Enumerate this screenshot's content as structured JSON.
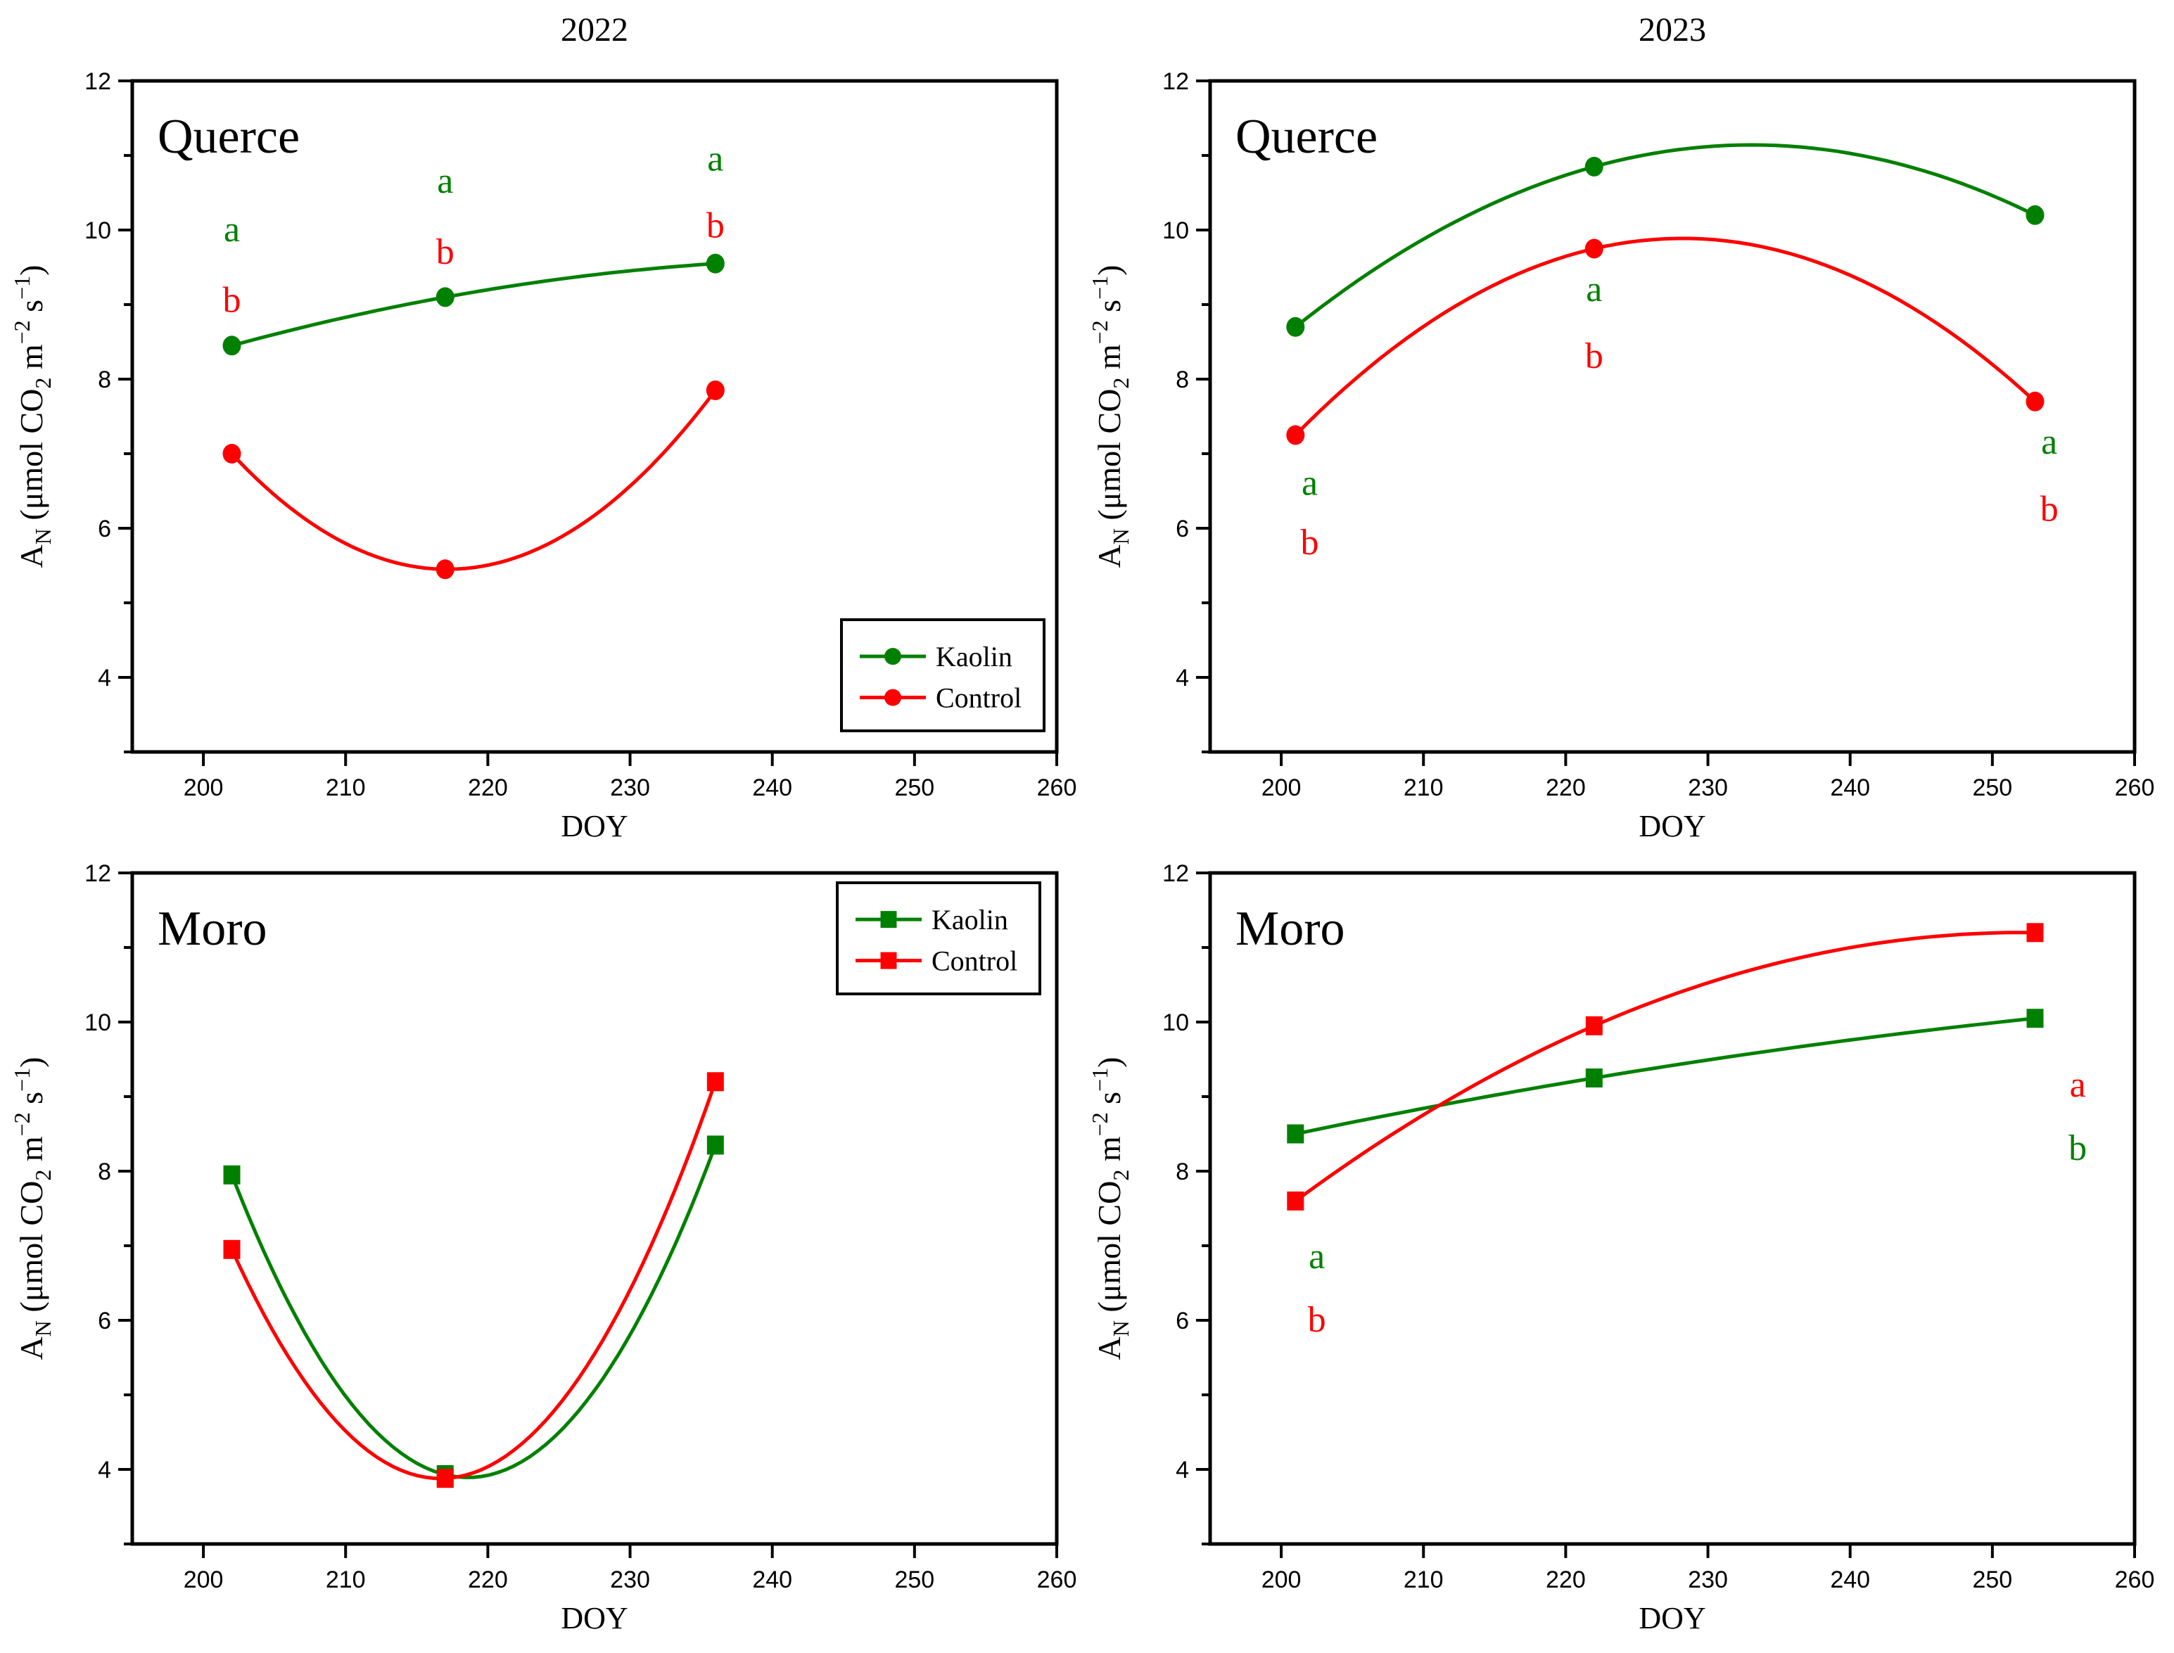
{
  "figure": {
    "column_titles": [
      "2022",
      "2023"
    ],
    "x_axis_label": "DOY",
    "y_axis_label_parts": [
      {
        "t": "A"
      },
      {
        "t": "N",
        "sub": true
      },
      {
        "t": " (μmol CO"
      },
      {
        "t": "2",
        "sub": true
      },
      {
        "t": " m"
      },
      {
        "t": "−2",
        "sup": true
      },
      {
        "t": " s"
      },
      {
        "t": "−1",
        "sup": true
      },
      {
        "t": ")"
      }
    ],
    "colors": {
      "kaolin": "#008000",
      "control": "#ff0000",
      "axis": "#000000",
      "background": "#ffffff"
    },
    "x_ticks": [
      200,
      210,
      220,
      230,
      240,
      250,
      260
    ],
    "y_ticks": [
      4,
      6,
      8,
      10,
      12
    ],
    "y_minor_ticks": [
      3,
      5,
      7,
      9,
      11
    ],
    "xlim": [
      195,
      260
    ],
    "ylim": [
      3,
      12
    ]
  },
  "chart_data": [
    {
      "type": "line",
      "panel_label": "Querce",
      "column_title": "2022",
      "row": 0,
      "col": 0,
      "x": [
        202,
        217,
        236
      ],
      "series": [
        {
          "name": "Kaolin",
          "color": "#008000",
          "marker": "circle",
          "values": [
            8.45,
            9.1,
            9.55
          ]
        },
        {
          "name": "Control",
          "color": "#ff0000",
          "marker": "circle",
          "values": [
            7.0,
            5.45,
            7.85
          ]
        }
      ],
      "sig_letters": [
        {
          "text": "a",
          "color": "#008000",
          "x": 202,
          "y": 10.0
        },
        {
          "text": "a",
          "color": "#008000",
          "x": 217,
          "y": 10.65
        },
        {
          "text": "a",
          "color": "#008000",
          "x": 236,
          "y": 10.95
        },
        {
          "text": "b",
          "color": "#ff0000",
          "x": 202,
          "y": 9.05
        },
        {
          "text": "b",
          "color": "#ff0000",
          "x": 217,
          "y": 9.7
        },
        {
          "text": "b",
          "color": "#ff0000",
          "x": 236,
          "y": 10.05
        }
      ],
      "legend": {
        "position": "bottom-right",
        "labels": [
          "Kaolin",
          "Control"
        ]
      },
      "xlabel": "DOY",
      "ylabel": "AN (umol CO2 m-2 s-1)"
    },
    {
      "type": "line",
      "panel_label": "Querce",
      "column_title": "2023",
      "row": 0,
      "col": 1,
      "x": [
        201,
        222,
        253
      ],
      "series": [
        {
          "name": "Kaolin",
          "color": "#008000",
          "marker": "circle",
          "values": [
            8.7,
            10.85,
            10.2
          ]
        },
        {
          "name": "Control",
          "color": "#ff0000",
          "marker": "circle",
          "values": [
            7.25,
            9.75,
            7.7
          ]
        }
      ],
      "sig_letters": [
        {
          "text": "a",
          "color": "#008000",
          "x": 202,
          "y": 6.6
        },
        {
          "text": "a",
          "color": "#008000",
          "x": 222,
          "y": 9.2
        },
        {
          "text": "a",
          "color": "#008000",
          "x": 254,
          "y": 7.15
        },
        {
          "text": "b",
          "color": "#ff0000",
          "x": 202,
          "y": 5.8
        },
        {
          "text": "b",
          "color": "#ff0000",
          "x": 222,
          "y": 8.3
        },
        {
          "text": "b",
          "color": "#ff0000",
          "x": 254,
          "y": 6.25
        }
      ],
      "legend": null,
      "xlabel": "DOY",
      "ylabel": "AN (umol CO2 m-2 s-1)"
    },
    {
      "type": "line",
      "panel_label": "Moro",
      "column_title": "2022",
      "row": 1,
      "col": 0,
      "x": [
        202,
        217,
        236
      ],
      "series": [
        {
          "name": "Kaolin",
          "color": "#008000",
          "marker": "square",
          "values": [
            7.95,
            3.93,
            8.35
          ]
        },
        {
          "name": "Control",
          "color": "#ff0000",
          "marker": "square",
          "values": [
            6.95,
            3.88,
            9.2
          ]
        }
      ],
      "sig_letters": [],
      "legend": {
        "position": "top-right",
        "labels": [
          "Kaolin",
          "Control"
        ]
      },
      "xlabel": "DOY",
      "ylabel": "AN (umol CO2 m-2 s-1)"
    },
    {
      "type": "line",
      "panel_label": "Moro",
      "column_title": "2023",
      "row": 1,
      "col": 1,
      "x": [
        201,
        222,
        253
      ],
      "series": [
        {
          "name": "Kaolin",
          "color": "#008000",
          "marker": "square",
          "values": [
            8.5,
            9.25,
            10.05
          ]
        },
        {
          "name": "Control",
          "color": "#ff0000",
          "marker": "square",
          "values": [
            7.6,
            9.95,
            11.2
          ]
        }
      ],
      "sig_letters": [
        {
          "text": "a",
          "color": "#008000",
          "x": 202.5,
          "y": 6.85
        },
        {
          "text": "b",
          "color": "#ff0000",
          "x": 202.5,
          "y": 6.0
        },
        {
          "text": "a",
          "color": "#ff0000",
          "x": 256,
          "y": 9.15
        },
        {
          "text": "b",
          "color": "#008000",
          "x": 256,
          "y": 8.3
        }
      ],
      "legend": null,
      "xlabel": "DOY",
      "ylabel": "AN (umol CO2 m-2 s-1)"
    }
  ]
}
